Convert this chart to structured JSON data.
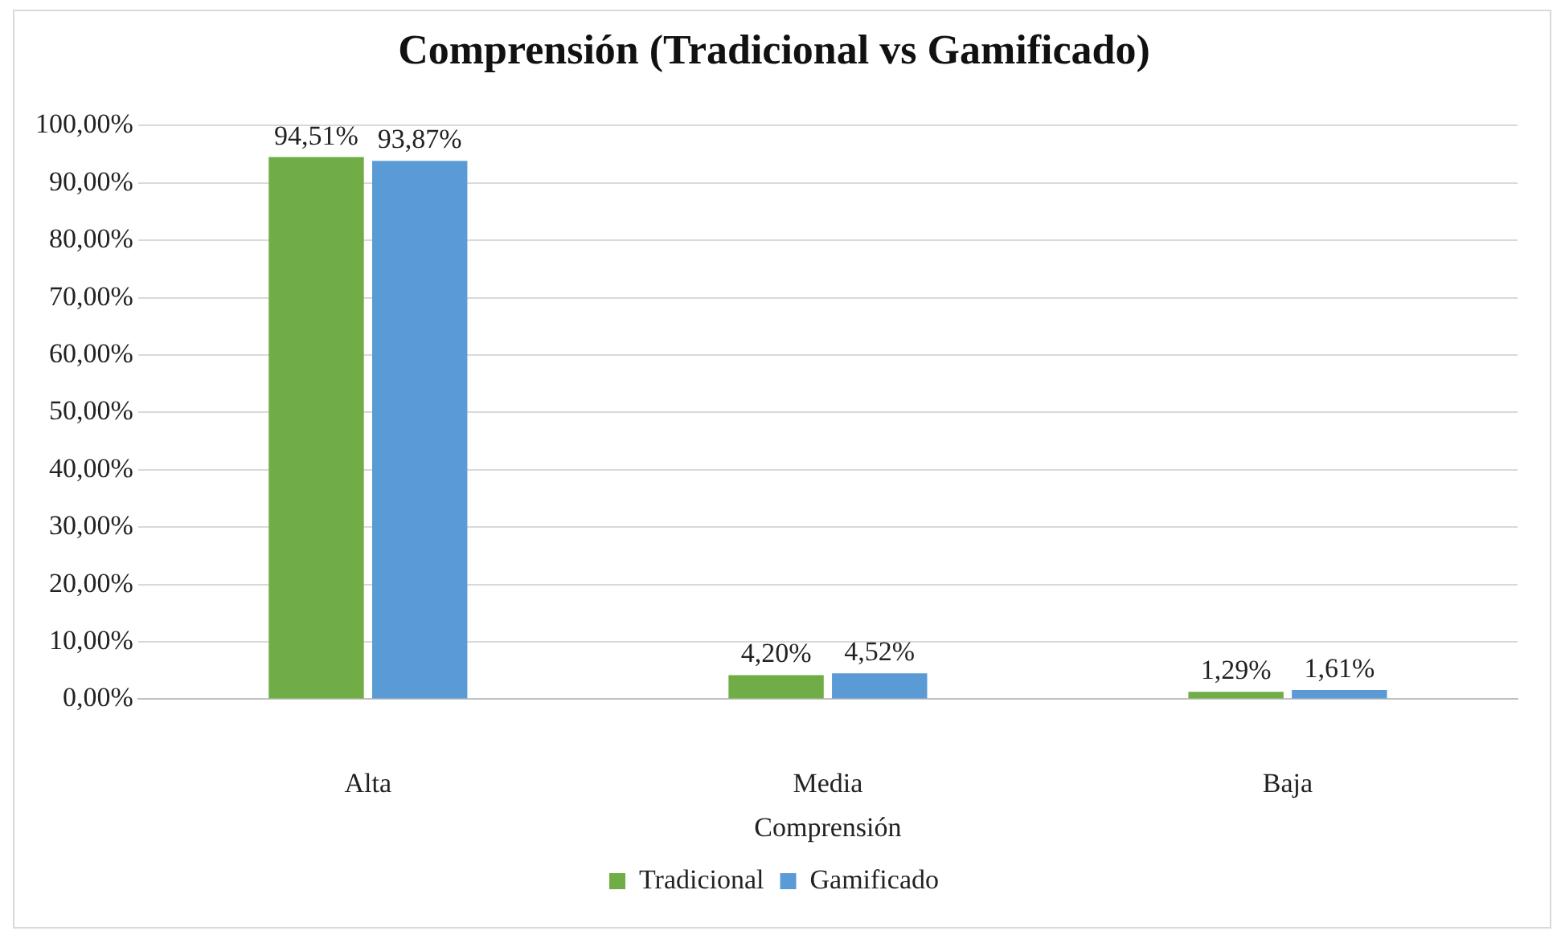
{
  "chart_data": {
    "type": "bar",
    "title": "Comprensión (Tradicional vs Gamificado)",
    "xlabel": "Comprensión",
    "categories": [
      "Alta",
      "Media",
      "Baja"
    ],
    "series": [
      {
        "name": "Tradicional",
        "color": "#70ad47",
        "values": [
          94.51,
          4.2,
          1.29
        ],
        "value_labels": [
          "94,51%",
          "4,20%",
          "1,29%"
        ]
      },
      {
        "name": "Gamificado",
        "color": "#5b9bd5",
        "values": [
          93.87,
          4.52,
          1.61
        ],
        "value_labels": [
          "93,87%",
          "4,52%",
          "1,61%"
        ]
      }
    ],
    "ylim": [
      0,
      100
    ],
    "yticks": [
      {
        "value": 0,
        "label": "0,00%"
      },
      {
        "value": 10,
        "label": "10,00%"
      },
      {
        "value": 20,
        "label": "20,00%"
      },
      {
        "value": 30,
        "label": "30,00%"
      },
      {
        "value": 40,
        "label": "40,00%"
      },
      {
        "value": 50,
        "label": "50,00%"
      },
      {
        "value": 60,
        "label": "60,00%"
      },
      {
        "value": 70,
        "label": "70,00%"
      },
      {
        "value": 80,
        "label": "80,00%"
      },
      {
        "value": 90,
        "label": "90,00%"
      },
      {
        "value": 100,
        "label": "100,00%"
      }
    ],
    "grid": "y",
    "legend": "bottom"
  }
}
